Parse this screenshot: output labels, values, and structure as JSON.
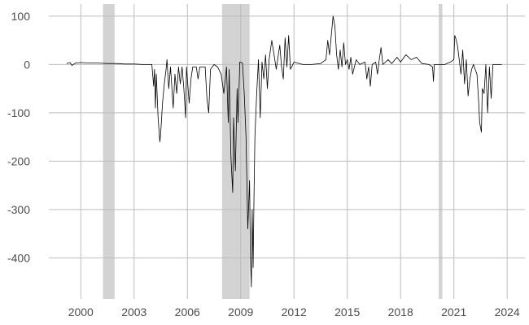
{
  "chart_data": {
    "type": "line",
    "title": "",
    "xlabel": "",
    "ylabel": "",
    "xlim": [
      1998.2,
      2025.0
    ],
    "ylim": [
      -485,
      125
    ],
    "grid": true,
    "x_ticks": [
      2000,
      2003,
      2006,
      2009,
      2012,
      2015,
      2018,
      2021,
      2024
    ],
    "y_ticks": [
      100,
      0,
      -100,
      -200,
      -300,
      -400
    ],
    "recession_periods": [
      [
        2001.25,
        2001.9
      ],
      [
        2007.95,
        2009.5
      ],
      [
        2020.15,
        2020.35
      ]
    ],
    "colors": {
      "line": "#000000",
      "recession": "#d3d3d3",
      "grid": "#bdbdbd",
      "tick_text": "#4d4d4d"
    },
    "series": [
      {
        "values": [
          [
            1999.2,
            2
          ],
          [
            1999.4,
            4
          ],
          [
            1999.5,
            -2
          ],
          [
            1999.7,
            3
          ],
          [
            2000.0,
            4
          ],
          [
            2000.5,
            3
          ],
          [
            2001.0,
            3
          ],
          [
            2001.5,
            2
          ],
          [
            2002.0,
            2
          ],
          [
            2002.5,
            1
          ],
          [
            2003.0,
            1
          ],
          [
            2003.5,
            0
          ],
          [
            2004.0,
            0
          ],
          [
            2004.1,
            -45
          ],
          [
            2004.15,
            -10
          ],
          [
            2004.2,
            -90
          ],
          [
            2004.25,
            -20
          ],
          [
            2004.35,
            -110
          ],
          [
            2004.45,
            -160
          ],
          [
            2004.5,
            -140
          ],
          [
            2004.6,
            -80
          ],
          [
            2004.7,
            -40
          ],
          [
            2004.8,
            -10
          ],
          [
            2004.85,
            10
          ],
          [
            2004.95,
            -50
          ],
          [
            2005.05,
            -5
          ],
          [
            2005.2,
            -90
          ],
          [
            2005.3,
            -20
          ],
          [
            2005.4,
            -60
          ],
          [
            2005.5,
            -5
          ],
          [
            2005.6,
            -40
          ],
          [
            2005.7,
            -5
          ],
          [
            2005.8,
            -50
          ],
          [
            2005.9,
            -110
          ],
          [
            2005.95,
            -5
          ],
          [
            2006.1,
            -80
          ],
          [
            2006.2,
            -30
          ],
          [
            2006.3,
            -5
          ],
          [
            2006.5,
            -5
          ],
          [
            2006.6,
            -30
          ],
          [
            2006.7,
            -5
          ],
          [
            2007.0,
            -5
          ],
          [
            2007.1,
            -70
          ],
          [
            2007.2,
            -100
          ],
          [
            2007.3,
            -10
          ],
          [
            2007.5,
            0
          ],
          [
            2007.7,
            -5
          ],
          [
            2007.9,
            -20
          ],
          [
            2008.05,
            -60
          ],
          [
            2008.2,
            -5
          ],
          [
            2008.3,
            -120
          ],
          [
            2008.35,
            -10
          ],
          [
            2008.45,
            -190
          ],
          [
            2008.55,
            -265
          ],
          [
            2008.6,
            -110
          ],
          [
            2008.7,
            -220
          ],
          [
            2008.8,
            -50
          ],
          [
            2008.85,
            -120
          ],
          [
            2008.95,
            5
          ],
          [
            2009.1,
            3
          ],
          [
            2009.2,
            -60
          ],
          [
            2009.3,
            -150
          ],
          [
            2009.4,
            -340
          ],
          [
            2009.5,
            -240
          ],
          [
            2009.55,
            -400
          ],
          [
            2009.6,
            -460
          ],
          [
            2009.65,
            -300
          ],
          [
            2009.7,
            -420
          ],
          [
            2009.75,
            -270
          ],
          [
            2009.8,
            -150
          ],
          [
            2009.9,
            -60
          ],
          [
            2010.0,
            10
          ],
          [
            2010.1,
            -110
          ],
          [
            2010.2,
            5
          ],
          [
            2010.3,
            -30
          ],
          [
            2010.4,
            20
          ],
          [
            2010.5,
            -50
          ],
          [
            2010.6,
            10
          ],
          [
            2010.75,
            50
          ],
          [
            2010.9,
            15
          ],
          [
            2011.0,
            -10
          ],
          [
            2011.2,
            40
          ],
          [
            2011.3,
            -5
          ],
          [
            2011.4,
            -30
          ],
          [
            2011.5,
            55
          ],
          [
            2011.6,
            -5
          ],
          [
            2011.7,
            60
          ],
          [
            2011.8,
            -10
          ],
          [
            2012.0,
            5
          ],
          [
            2012.5,
            0
          ],
          [
            2013.0,
            0
          ],
          [
            2013.5,
            2
          ],
          [
            2013.8,
            10
          ],
          [
            2013.9,
            50
          ],
          [
            2014.0,
            20
          ],
          [
            2014.1,
            60
          ],
          [
            2014.2,
            100
          ],
          [
            2014.3,
            80
          ],
          [
            2014.4,
            20
          ],
          [
            2014.5,
            -10
          ],
          [
            2014.6,
            30
          ],
          [
            2014.7,
            -5
          ],
          [
            2014.8,
            45
          ],
          [
            2014.9,
            0
          ],
          [
            2015.0,
            10
          ],
          [
            2015.1,
            -10
          ],
          [
            2015.2,
            15
          ],
          [
            2015.3,
            -20
          ],
          [
            2015.5,
            10
          ],
          [
            2015.7,
            0
          ],
          [
            2016.0,
            5
          ],
          [
            2016.1,
            -30
          ],
          [
            2016.2,
            -5
          ],
          [
            2016.3,
            -45
          ],
          [
            2016.4,
            0
          ],
          [
            2016.6,
            5
          ],
          [
            2016.7,
            -20
          ],
          [
            2016.8,
            10
          ],
          [
            2016.9,
            35
          ],
          [
            2017.0,
            0
          ],
          [
            2017.3,
            10
          ],
          [
            2017.5,
            2
          ],
          [
            2017.8,
            15
          ],
          [
            2018.0,
            5
          ],
          [
            2018.3,
            20
          ],
          [
            2018.6,
            10
          ],
          [
            2018.9,
            15
          ],
          [
            2019.2,
            2
          ],
          [
            2019.6,
            0
          ],
          [
            2019.8,
            -5
          ],
          [
            2019.85,
            -35
          ],
          [
            2019.9,
            0
          ],
          [
            2020.5,
            0
          ],
          [
            2020.6,
            2
          ],
          [
            2020.8,
            5
          ],
          [
            2021.0,
            10
          ],
          [
            2021.05,
            60
          ],
          [
            2021.1,
            55
          ],
          [
            2021.2,
            40
          ],
          [
            2021.3,
            10
          ],
          [
            2021.4,
            -20
          ],
          [
            2021.5,
            30
          ],
          [
            2021.6,
            -40
          ],
          [
            2021.7,
            10
          ],
          [
            2021.8,
            -65
          ],
          [
            2021.9,
            -30
          ],
          [
            2022.0,
            -10
          ],
          [
            2022.1,
            0
          ],
          [
            2022.2,
            -10
          ],
          [
            2022.3,
            -20
          ],
          [
            2022.4,
            -80
          ],
          [
            2022.45,
            -120
          ],
          [
            2022.55,
            -140
          ],
          [
            2022.6,
            -50
          ],
          [
            2022.7,
            -60
          ],
          [
            2022.8,
            0
          ],
          [
            2022.9,
            -100
          ],
          [
            2023.0,
            -5
          ],
          [
            2023.1,
            -70
          ],
          [
            2023.2,
            0
          ],
          [
            2023.5,
            0
          ],
          [
            2023.7,
            0
          ]
        ]
      }
    ]
  }
}
